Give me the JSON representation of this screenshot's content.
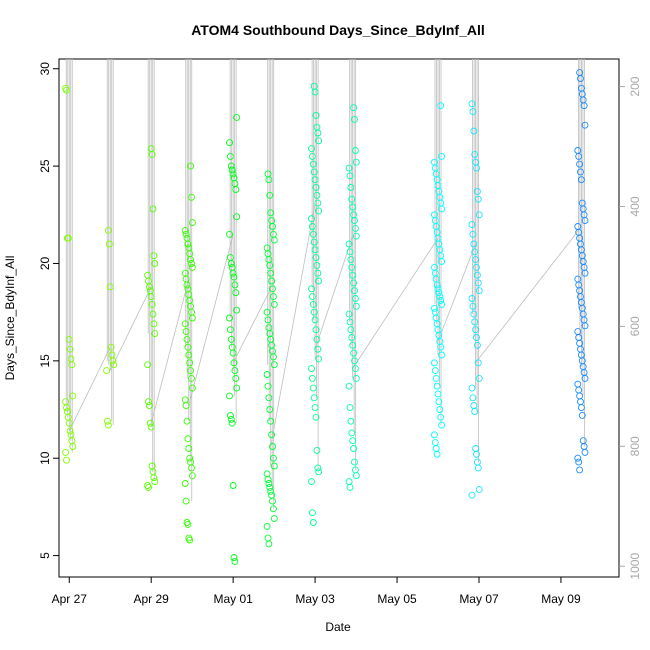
{
  "chart_data": {
    "type": "scatter",
    "title": "ATOM4 Southbound Days_Since_BdyInf_All",
    "xlabel": "Date",
    "ylabel": "Days_Since_BdyInf_All",
    "xlim": [
      "2017-04-26T18:00",
      "2017-05-10T10:00"
    ],
    "ylim": [
      3.9,
      30.5
    ],
    "y_ticks": [
      5,
      10,
      15,
      20,
      25,
      30
    ],
    "x_ticks": [
      {
        "date": "2017-04-27T00:00",
        "label": "Apr 27"
      },
      {
        "date": "2017-04-29T00:00",
        "label": "Apr 29"
      },
      {
        "date": "2017-05-01T00:00",
        "label": "May 01"
      },
      {
        "date": "2017-05-03T00:00",
        "label": "May 03"
      },
      {
        "date": "2017-05-05T00:00",
        "label": "May 05"
      },
      {
        "date": "2017-05-07T00:00",
        "label": "May 07"
      },
      {
        "date": "2017-05-09T00:00",
        "label": "May 09"
      }
    ],
    "y2_label": "",
    "y2lim": [
      1018,
      154
    ],
    "y2_ticks": [
      200,
      400,
      600,
      800,
      1000
    ],
    "grid": false,
    "legend": "none",
    "profile_color": "#bebebe",
    "groups": [
      {
        "time": "2017-04-27T00:00",
        "color": "#7fff00",
        "values": [
          29.0,
          28.9,
          21.3,
          21.3,
          16.1,
          15.6,
          15.1,
          14.8,
          13.2,
          12.9,
          12.6,
          12.4,
          12.1,
          11.8,
          11.4,
          11.2,
          10.9,
          10.6,
          10.3,
          9.9
        ]
      },
      {
        "time": "2017-04-28T00:00",
        "color": "#7fff00",
        "values": [
          21.7,
          21.0,
          18.8,
          15.7,
          15.3,
          15.0,
          14.8,
          14.5,
          11.9,
          11.7
        ]
      },
      {
        "time": "2017-04-29T00:00",
        "color": "#59ff00",
        "values": [
          25.9,
          25.6,
          22.8,
          20.4,
          20.0,
          19.4,
          19.1,
          18.8,
          18.6,
          18.3,
          17.9,
          17.4,
          16.9,
          16.4,
          14.8,
          12.9,
          12.7,
          11.8,
          11.6,
          9.6,
          9.3,
          9.0,
          8.8,
          8.6,
          8.5
        ]
      },
      {
        "time": "2017-04-29T22:00",
        "color": "#33ff00",
        "values": [
          25.0,
          23.4,
          22.1,
          21.7,
          21.5,
          21.3,
          21.0,
          20.8,
          20.5,
          20.2,
          20.0,
          19.8,
          19.5,
          19.2,
          18.9,
          18.7,
          18.4,
          18.1,
          17.8,
          17.5,
          17.2,
          16.9,
          16.5,
          16.1,
          15.7,
          15.3,
          14.9,
          14.5,
          14.1,
          13.6,
          13.0,
          12.7,
          11.9,
          11.0,
          10.5,
          10.0,
          9.8,
          9.5,
          9.1,
          8.7,
          7.8,
          6.7,
          6.6,
          5.9,
          5.8
        ]
      },
      {
        "time": "2017-05-01T00:00",
        "color": "#00ff19",
        "values": [
          27.5,
          26.2,
          25.5,
          25.0,
          24.8,
          24.6,
          24.4,
          24.1,
          23.8,
          22.4,
          21.5,
          20.3,
          20.0,
          19.8,
          19.5,
          19.3,
          18.9,
          18.5,
          17.6,
          17.2,
          16.6,
          16.1,
          15.7,
          15.4,
          14.9,
          14.5,
          14.1,
          13.6,
          13.2,
          12.2,
          12.0,
          11.8,
          8.6,
          4.9,
          4.7
        ]
      },
      {
        "time": "2017-05-01T22:00",
        "color": "#00ff33",
        "values": [
          24.6,
          24.3,
          23.5,
          22.6,
          22.2,
          21.9,
          21.5,
          21.2,
          20.8,
          20.5,
          20.2,
          19.9,
          19.5,
          19.1,
          18.7,
          18.3,
          17.9,
          17.5,
          17.1,
          16.7,
          16.4,
          16.1,
          15.8,
          15.5,
          15.2,
          14.8,
          14.3,
          13.7,
          13.1,
          12.5,
          11.9,
          11.2,
          10.6,
          10.0,
          9.6,
          9.2,
          8.9,
          8.7,
          8.5,
          8.3,
          8.1,
          7.8,
          7.4,
          6.9,
          6.5,
          5.9,
          5.6
        ]
      },
      {
        "time": "2017-05-03T00:00",
        "color": "#00ff99",
        "values": [
          29.1,
          28.8,
          27.6,
          27.0,
          26.7,
          26.3,
          25.9,
          25.5,
          25.1,
          24.7,
          24.3,
          23.9,
          23.5,
          23.1,
          22.7,
          22.3,
          21.9,
          21.5,
          21.1,
          20.7,
          20.3,
          19.9,
          19.5,
          19.1,
          18.7,
          18.3,
          17.9,
          17.5,
          17.1,
          16.6,
          16.1,
          15.6,
          15.1,
          14.6,
          14.1,
          13.6,
          13.1,
          12.6,
          12.1,
          10.4,
          9.5,
          9.3,
          8.8,
          7.2,
          6.7
        ]
      },
      {
        "time": "2017-05-03T22:00",
        "color": "#00ffb2",
        "values": [
          28.0,
          27.4,
          25.8,
          25.2,
          24.9,
          24.5,
          23.9,
          23.3,
          22.9,
          22.5,
          22.2,
          21.8,
          21.4,
          21.0,
          20.6,
          20.2,
          19.8,
          19.4,
          19.0,
          18.6,
          18.2,
          17.8,
          17.4,
          17.0,
          16.6,
          16.2,
          15.8,
          15.4,
          15.0,
          14.6,
          14.1,
          13.7,
          12.6,
          11.9,
          11.3,
          10.9,
          10.5,
          9.8,
          9.4,
          9.1,
          8.8,
          8.5
        ]
      },
      {
        "time": "2017-05-06T00:00",
        "color": "#00ffff",
        "values": [
          28.1,
          25.5,
          25.2,
          24.9,
          24.6,
          24.3,
          24.0,
          23.7,
          23.4,
          23.1,
          22.8,
          22.5,
          22.2,
          21.9,
          21.6,
          21.3,
          21.0,
          20.7,
          20.4,
          20.1,
          19.8,
          19.5,
          19.2,
          18.9,
          18.7,
          18.5,
          18.3,
          18.1,
          17.9,
          17.7,
          17.5,
          17.2,
          16.9,
          16.6,
          16.3,
          16.0,
          15.7,
          15.3,
          14.9,
          14.5,
          14.1,
          13.7,
          13.3,
          12.9,
          12.5,
          12.1,
          11.7,
          11.2,
          10.8,
          10.5,
          10.2
        ]
      },
      {
        "time": "2017-05-06T22:00",
        "color": "#19e5ff",
        "values": [
          28.2,
          27.8,
          26.8,
          25.6,
          25.2,
          24.9,
          23.7,
          23.3,
          22.5,
          22.0,
          21.5,
          21.0,
          20.6,
          20.2,
          19.8,
          19.4,
          19.0,
          18.6,
          18.2,
          17.8,
          17.4,
          17.0,
          16.6,
          16.2,
          15.8,
          14.9,
          14.1,
          13.6,
          13.1,
          12.7,
          12.4,
          10.5,
          10.2,
          9.8,
          9.5,
          8.4,
          8.1
        ]
      },
      {
        "time": "2017-05-09T12:00",
        "color": "#1a8cff",
        "values": [
          29.8,
          29.5,
          29.0,
          28.7,
          28.4,
          28.1,
          27.1,
          25.8,
          25.5,
          25.1,
          24.7,
          24.3,
          23.1,
          22.8,
          22.5,
          22.2,
          21.9,
          21.6,
          21.3,
          21.0,
          20.7,
          20.4,
          20.1,
          19.8,
          19.5,
          19.2,
          18.9,
          18.6,
          18.3,
          18.0,
          17.7,
          17.4,
          17.1,
          16.8,
          16.5,
          16.2,
          15.9,
          15.6,
          15.3,
          15.0,
          14.7,
          14.4,
          14.1,
          13.8,
          13.5,
          13.2,
          12.9,
          12.6,
          12.2,
          10.9,
          10.6,
          10.3,
          10.0,
          9.8,
          9.4
        ]
      }
    ]
  }
}
